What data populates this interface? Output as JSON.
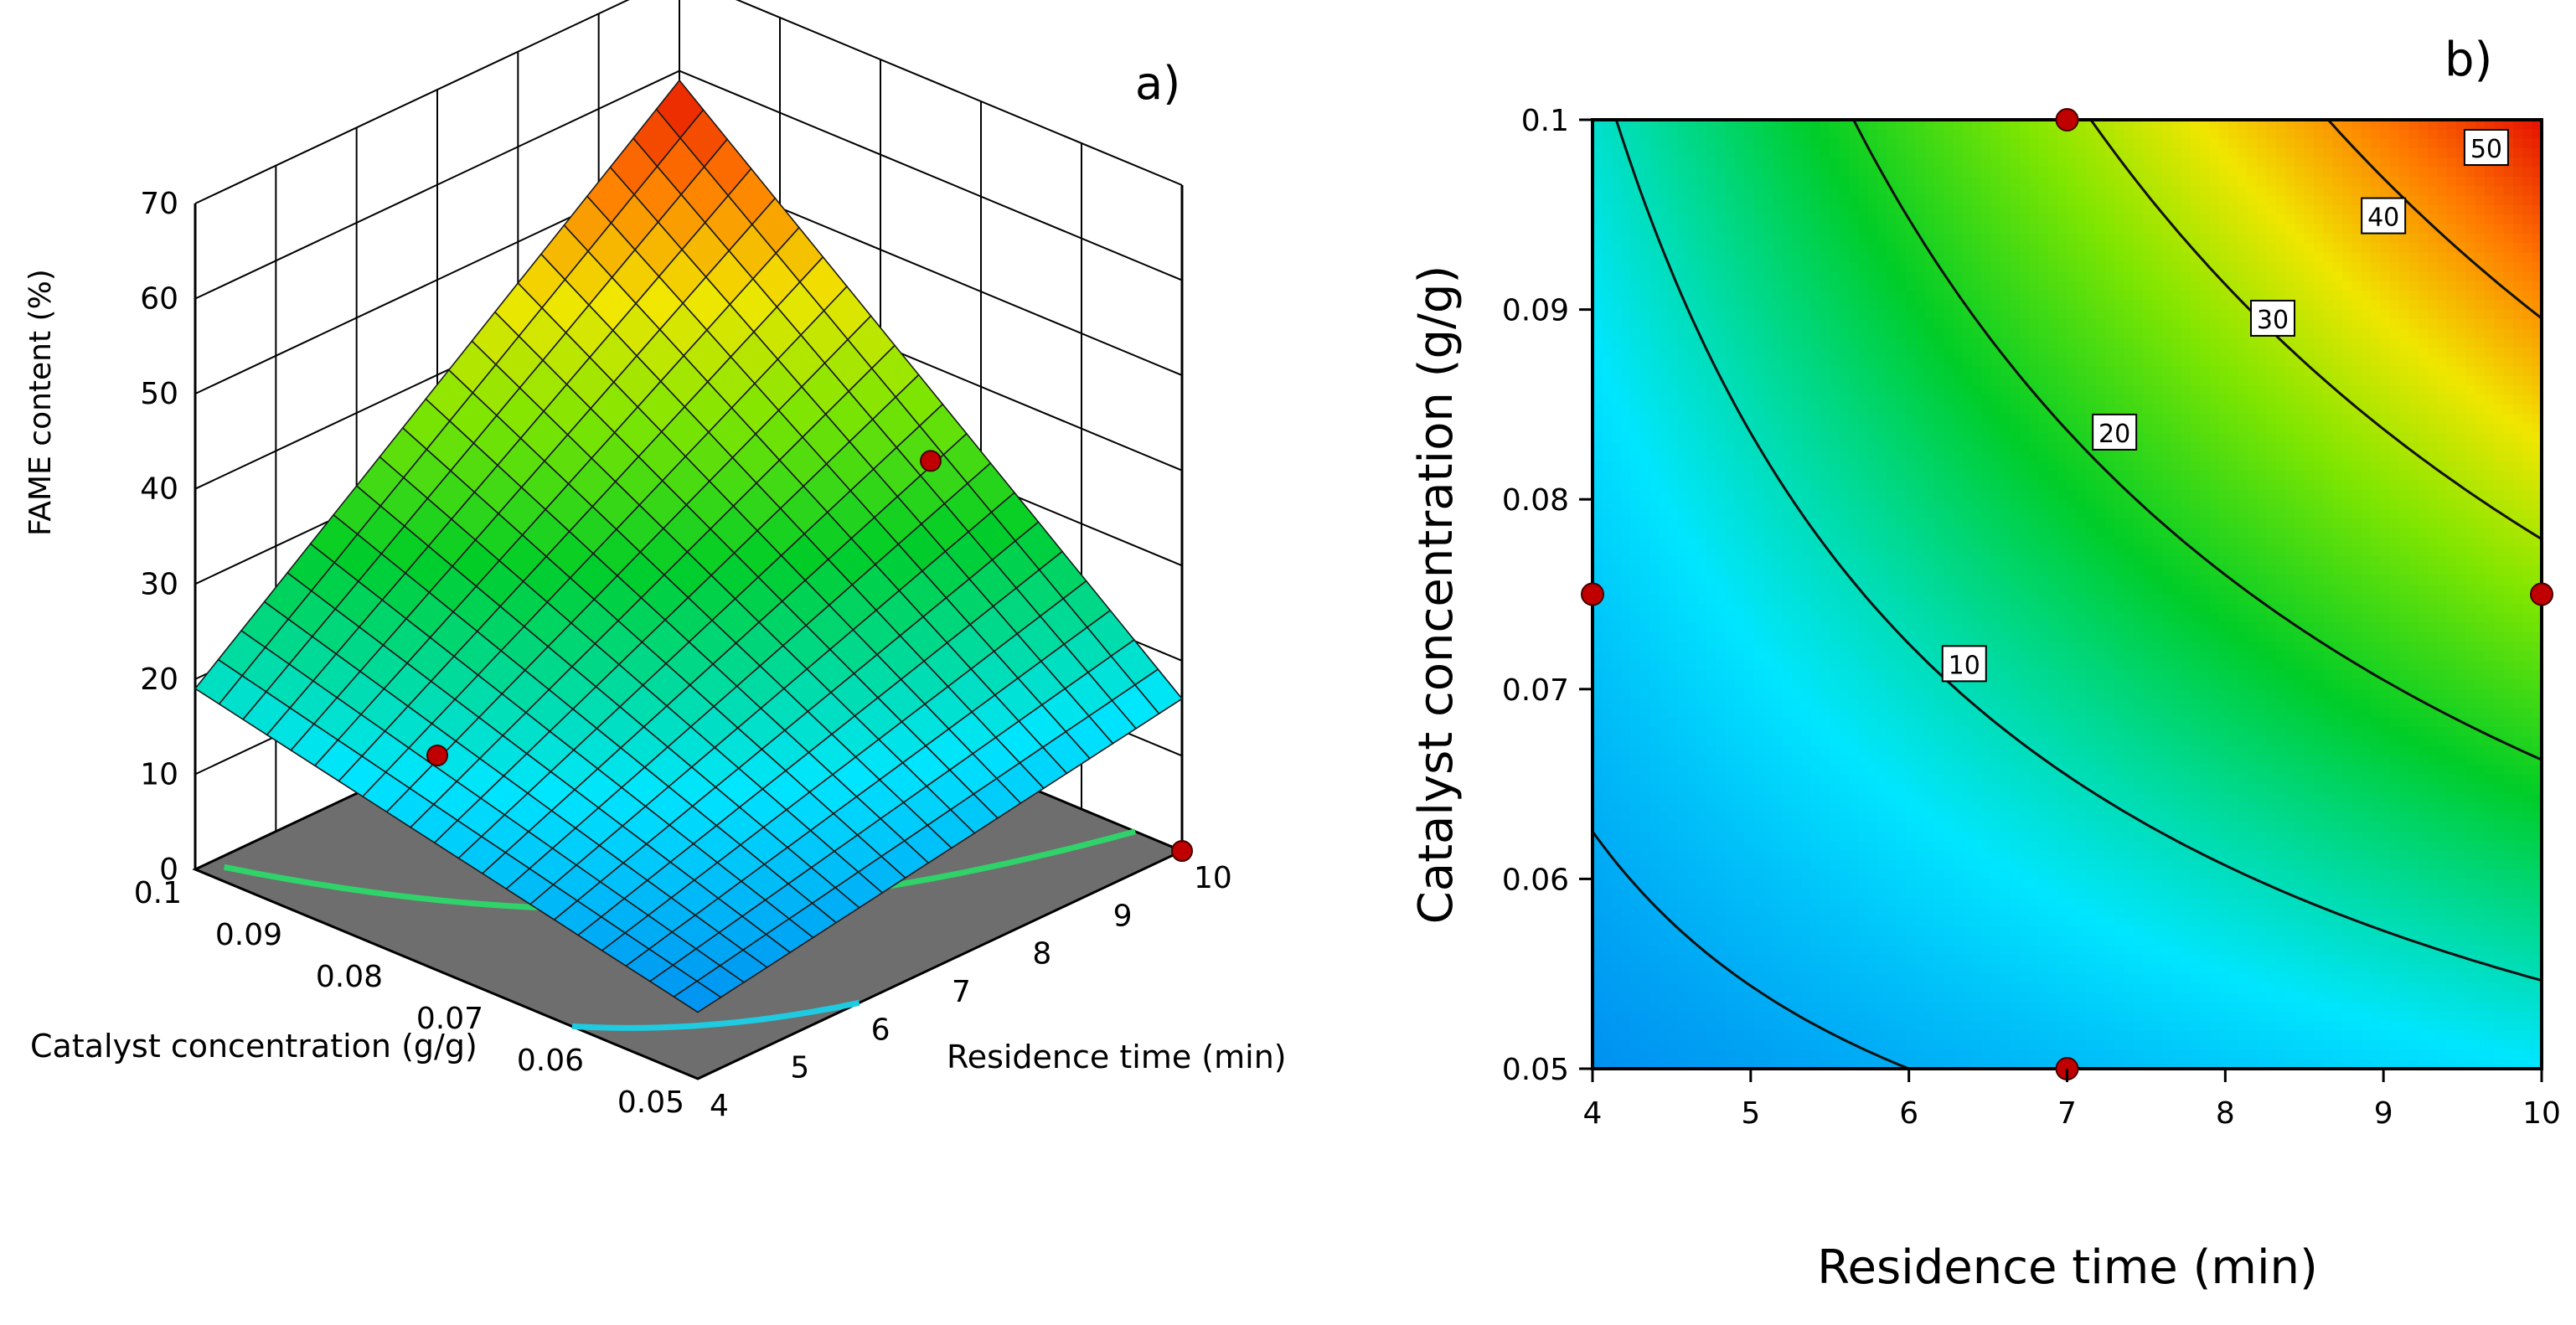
{
  "chart_data": [
    {
      "type": "surface3d",
      "panel_label": "a)",
      "x": {
        "label": "Residence time (min)",
        "range": [
          4,
          10
        ],
        "ticks": [
          4,
          5,
          6,
          7,
          8,
          9,
          10
        ]
      },
      "y": {
        "label": "Catalyst concentration (g/g)",
        "range": [
          0.05,
          0.1
        ],
        "ticks": [
          "0.05",
          "0.06",
          "0.07",
          "0.08",
          "0.09",
          "0.1"
        ]
      },
      "z": {
        "label": "FAME content (%)",
        "range": [
          0,
          70
        ],
        "ticks": [
          0,
          10,
          20,
          30,
          40,
          50,
          60,
          70
        ]
      },
      "corner_values": [
        {
          "time": 4,
          "cat": 0.05,
          "fame": 7
        },
        {
          "time": 10,
          "cat": 0.05,
          "fame": 16
        },
        {
          "time": 4,
          "cat": 0.1,
          "fame": 19
        },
        {
          "time": 10,
          "cat": 0.1,
          "fame": 59
        }
      ],
      "design_points": [
        {
          "time": 10,
          "cat": 0.075,
          "fame": 30
        },
        {
          "time": 7,
          "cat": 0.1,
          "fame": 0
        },
        {
          "time": 10,
          "cat": 0.05,
          "fame": 0
        }
      ]
    },
    {
      "type": "contour",
      "panel_label": "b)",
      "x": {
        "label": "Residence time (min)",
        "range": [
          4,
          10
        ],
        "ticks": [
          "4",
          "5",
          "6",
          "7",
          "8",
          "9",
          "10"
        ]
      },
      "y": {
        "label": "Catalyst concentration (g/g)",
        "range": [
          0.05,
          0.1
        ],
        "ticks": [
          "0.05",
          "0.06",
          "0.07",
          "0.08",
          "0.09",
          "0.1"
        ]
      },
      "contour_levels": [
        10,
        20,
        30,
        40,
        50
      ],
      "contour_labels": [
        {
          "level": "10",
          "time": 6.35,
          "cat": 0.0713
        },
        {
          "level": "20",
          "time": 7.3,
          "cat": 0.0835
        },
        {
          "level": "30",
          "time": 8.3,
          "cat": 0.0895
        },
        {
          "level": "40",
          "time": 9.0,
          "cat": 0.0949
        },
        {
          "level": "50",
          "time": 9.65,
          "cat": 0.0985
        }
      ],
      "design_points": [
        {
          "time": 4,
          "cat": 0.075
        },
        {
          "time": 7,
          "cat": 0.1
        },
        {
          "time": 7,
          "cat": 0.05
        },
        {
          "time": 10,
          "cat": 0.075
        }
      ]
    }
  ]
}
